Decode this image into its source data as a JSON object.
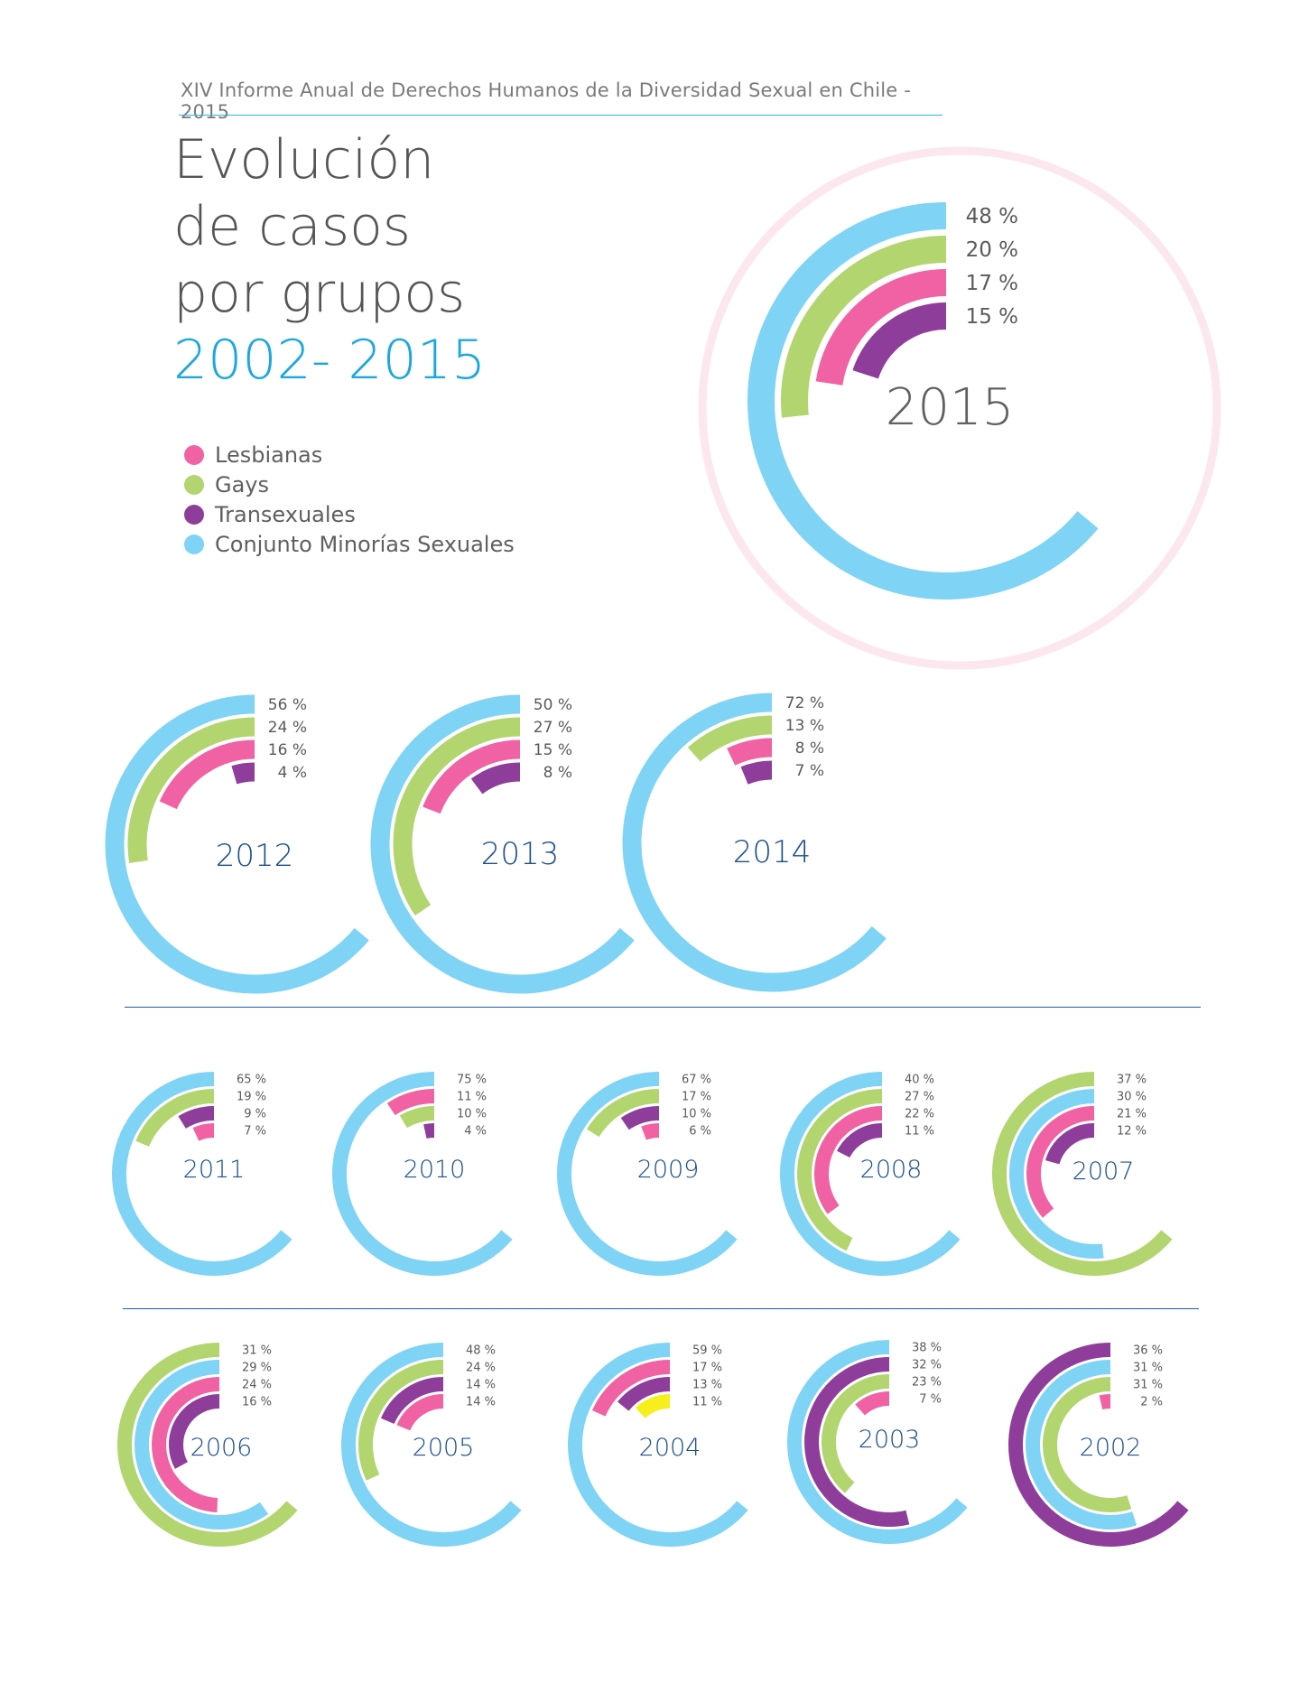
{
  "header": "XIV Informe Anual de Derechos Humanos de la Diversidad Sexual en Chile - 2015",
  "title_lines": [
    "Evolución",
    "de casos",
    "por grupos"
  ],
  "title_years": "2002- 2015",
  "colors": {
    "lesbianas": "#f062a3",
    "gays": "#b2d56f",
    "transexuales": "#8e3d9b",
    "conjunto": "#7fd3f5",
    "other": "#f7ee1e",
    "ring": "#fce7ef",
    "year_big": "#606060",
    "year_small": "#1c4f8c"
  },
  "legend": [
    {
      "label": "Lesbianas",
      "color": "#f062a3"
    },
    {
      "label": "Gays",
      "color": "#b2d56f"
    },
    {
      "label": "Transexuales",
      "color": "#8e3d9b"
    },
    {
      "label": "Conjunto Minorías Sexuales",
      "color": "#7fd3f5"
    }
  ],
  "chart_data": [
    {
      "type": "radial-bar",
      "title": "2015",
      "series": [
        {
          "name": "Conjunto Minorías Sexuales",
          "value": 48,
          "label": "48 %"
        },
        {
          "name": "Gays",
          "value": 20,
          "label": "20 %"
        },
        {
          "name": "Lesbianas",
          "value": 17,
          "label": "17 %"
        },
        {
          "name": "Transexuales",
          "value": 15,
          "label": "15 %"
        }
      ]
    },
    {
      "type": "radial-bar",
      "title": "2012",
      "series": [
        {
          "name": "Conjunto Minorías Sexuales",
          "value": 56,
          "label": "56 %"
        },
        {
          "name": "Gays",
          "value": 24,
          "label": "24 %"
        },
        {
          "name": "Lesbianas",
          "value": 16,
          "label": "16 %"
        },
        {
          "name": "Transexuales",
          "value": 4,
          "label": "4 %"
        }
      ]
    },
    {
      "type": "radial-bar",
      "title": "2013",
      "series": [
        {
          "name": "Conjunto Minorías Sexuales",
          "value": 50,
          "label": "50 %"
        },
        {
          "name": "Gays",
          "value": 27,
          "label": "27 %"
        },
        {
          "name": "Lesbianas",
          "value": 15,
          "label": "15 %"
        },
        {
          "name": "Transexuales",
          "value": 8,
          "label": "8 %"
        }
      ]
    },
    {
      "type": "radial-bar",
      "title": "2014",
      "series": [
        {
          "name": "Conjunto Minorías Sexuales",
          "value": 72,
          "label": "72 %"
        },
        {
          "name": "Gays",
          "value": 13,
          "label": "13 %"
        },
        {
          "name": "Lesbianas",
          "value": 8,
          "label": "8 %"
        },
        {
          "name": "Transexuales",
          "value": 7,
          "label": "7 %"
        }
      ]
    },
    {
      "type": "radial-bar",
      "title": "2011",
      "series": [
        {
          "name": "Conjunto Minorías Sexuales",
          "value": 65,
          "label": "65 %"
        },
        {
          "name": "Gays",
          "value": 19,
          "label": "19 %"
        },
        {
          "name": "Transexuales",
          "value": 9,
          "label": "9 %"
        },
        {
          "name": "Lesbianas",
          "value": 7,
          "label": "7 %"
        }
      ]
    },
    {
      "type": "radial-bar",
      "title": "2010",
      "series": [
        {
          "name": "Conjunto Minorías Sexuales",
          "value": 75,
          "label": "75 %"
        },
        {
          "name": "Lesbianas",
          "value": 11,
          "label": "11 %"
        },
        {
          "name": "Gays",
          "value": 10,
          "label": "10 %"
        },
        {
          "name": "Transexuales",
          "value": 4,
          "label": "4 %"
        }
      ]
    },
    {
      "type": "radial-bar",
      "title": "2009",
      "series": [
        {
          "name": "Conjunto Minorías Sexuales",
          "value": 67,
          "label": "67 %"
        },
        {
          "name": "Gays",
          "value": 17,
          "label": "17 %"
        },
        {
          "name": "Transexuales",
          "value": 10,
          "label": "10 %"
        },
        {
          "name": "Lesbianas",
          "value": 6,
          "label": "6 %"
        }
      ]
    },
    {
      "type": "radial-bar",
      "title": "2008",
      "series": [
        {
          "name": "Conjunto Minorías Sexuales",
          "value": 40,
          "label": "40 %"
        },
        {
          "name": "Gays",
          "value": 27,
          "label": "27 %"
        },
        {
          "name": "Lesbianas",
          "value": 22,
          "label": "22 %"
        },
        {
          "name": "Transexuales",
          "value": 11,
          "label": "11 %"
        }
      ]
    },
    {
      "type": "radial-bar",
      "title": "2007",
      "series": [
        {
          "name": "Gays",
          "value": 37,
          "label": "37 %"
        },
        {
          "name": "Conjunto Minorías Sexuales",
          "value": 30,
          "label": "30 %"
        },
        {
          "name": "Lesbianas",
          "value": 21,
          "label": "21 %"
        },
        {
          "name": "Transexuales",
          "value": 12,
          "label": "12 %"
        }
      ]
    },
    {
      "type": "radial-bar",
      "title": "2006",
      "series": [
        {
          "name": "Gays",
          "value": 31,
          "label": "31 %"
        },
        {
          "name": "Conjunto Minorías Sexuales",
          "value": 29,
          "label": "29 %"
        },
        {
          "name": "Lesbianas",
          "value": 24,
          "label": "24 %"
        },
        {
          "name": "Transexuales",
          "value": 16,
          "label": "16 %"
        }
      ]
    },
    {
      "type": "radial-bar",
      "title": "2005",
      "series": [
        {
          "name": "Conjunto Minorías Sexuales",
          "value": 48,
          "label": "48 %"
        },
        {
          "name": "Gays",
          "value": 24,
          "label": "24 %"
        },
        {
          "name": "Transexuales",
          "value": 14,
          "label": "14 %"
        },
        {
          "name": "Lesbianas",
          "value": 14,
          "label": "14 %"
        }
      ]
    },
    {
      "type": "radial-bar",
      "title": "2004",
      "series": [
        {
          "name": "Conjunto Minorías Sexuales",
          "value": 59,
          "label": "59 %"
        },
        {
          "name": "Lesbianas",
          "value": 17,
          "label": "17 %"
        },
        {
          "name": "Transexuales",
          "value": 13,
          "label": "13 %"
        },
        {
          "name": "other",
          "value": 11,
          "label": "11 %"
        }
      ]
    },
    {
      "type": "radial-bar",
      "title": "2003",
      "series": [
        {
          "name": "Conjunto Minorías Sexuales",
          "value": 38,
          "label": "38 %"
        },
        {
          "name": "Transexuales",
          "value": 32,
          "label": "32 %"
        },
        {
          "name": "Gays",
          "value": 23,
          "label": "23 %"
        },
        {
          "name": "Lesbianas",
          "value": 7,
          "label": "7 %"
        }
      ]
    },
    {
      "type": "radial-bar",
      "title": "2002",
      "series": [
        {
          "name": "Transexuales",
          "value": 36,
          "label": "36 %"
        },
        {
          "name": "Conjunto Minorías Sexuales",
          "value": 31,
          "label": "31 %"
        },
        {
          "name": "Gays",
          "value": 31,
          "label": "31 %"
        },
        {
          "name": "Lesbianas",
          "value": 2,
          "label": "2 %"
        }
      ]
    }
  ]
}
